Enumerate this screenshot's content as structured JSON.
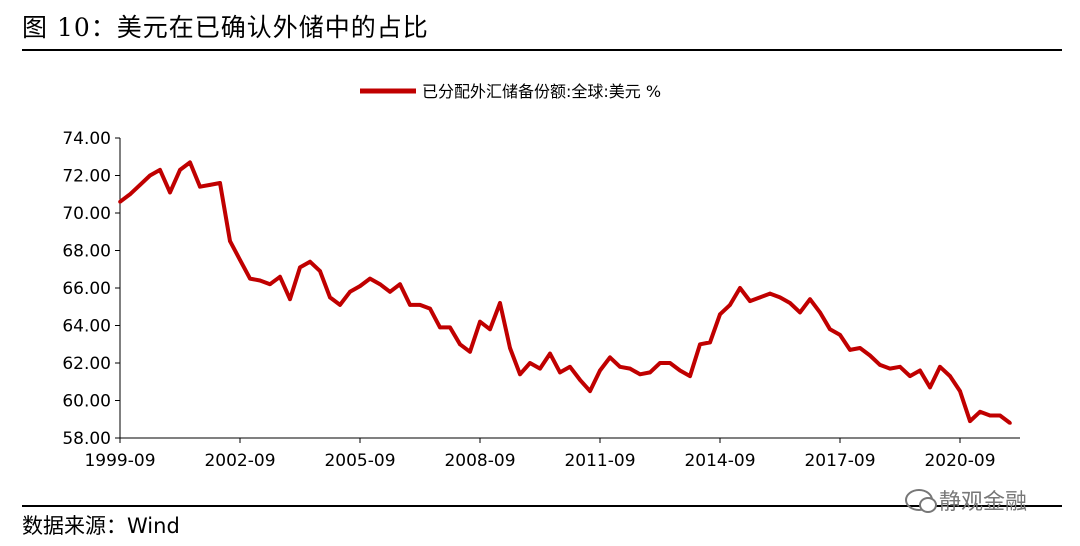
{
  "figure": {
    "title": "图 10：美元在已确认外储中的占比",
    "source": "数据来源：Wind",
    "watermark": "静观金融"
  },
  "colors": {
    "series": "#c00000",
    "axis": "#000000"
  },
  "chart_data": {
    "type": "line",
    "title": "",
    "xlabel": "",
    "ylabel": "",
    "legend_position": "top-center",
    "grid": false,
    "series": [
      {
        "name": "已分配外汇储备份额:全球:美元 %",
        "x": [
          "1999-09",
          "1999-12",
          "2000-03",
          "2000-06",
          "2000-09",
          "2000-12",
          "2001-03",
          "2001-06",
          "2001-09",
          "2001-12",
          "2002-03",
          "2002-06",
          "2002-09",
          "2002-12",
          "2003-03",
          "2003-06",
          "2003-09",
          "2003-12",
          "2004-03",
          "2004-06",
          "2004-09",
          "2004-12",
          "2005-03",
          "2005-06",
          "2005-09",
          "2005-12",
          "2006-03",
          "2006-06",
          "2006-09",
          "2006-12",
          "2007-03",
          "2007-06",
          "2007-09",
          "2007-12",
          "2008-03",
          "2008-06",
          "2008-09",
          "2008-12",
          "2009-03",
          "2009-06",
          "2009-09",
          "2009-12",
          "2010-03",
          "2010-06",
          "2010-09",
          "2010-12",
          "2011-03",
          "2011-06",
          "2011-09",
          "2011-12",
          "2012-03",
          "2012-06",
          "2012-09",
          "2012-12",
          "2013-03",
          "2013-06",
          "2013-09",
          "2013-12",
          "2014-03",
          "2014-06",
          "2014-09",
          "2014-12",
          "2015-03",
          "2015-06",
          "2015-09",
          "2015-12",
          "2016-03",
          "2016-06",
          "2016-09",
          "2016-12",
          "2017-03",
          "2017-06",
          "2017-09",
          "2017-12",
          "2018-03",
          "2018-06",
          "2018-09",
          "2018-12",
          "2019-03",
          "2019-06",
          "2019-09",
          "2019-12",
          "2020-03",
          "2020-06",
          "2020-09",
          "2020-12",
          "2021-03",
          "2021-06",
          "2021-09",
          "2021-12"
        ],
        "values": [
          70.6,
          71.0,
          71.5,
          72.0,
          72.3,
          71.1,
          72.3,
          72.7,
          71.4,
          71.5,
          71.6,
          68.5,
          67.5,
          66.5,
          66.4,
          66.2,
          66.6,
          65.4,
          67.1,
          67.4,
          66.9,
          65.5,
          65.1,
          65.8,
          66.1,
          66.5,
          66.2,
          65.8,
          66.2,
          65.1,
          65.1,
          64.9,
          63.9,
          63.9,
          63.0,
          62.6,
          64.2,
          63.8,
          65.2,
          62.8,
          61.4,
          62.0,
          61.7,
          62.5,
          61.5,
          61.8,
          61.1,
          60.5,
          61.6,
          62.3,
          61.8,
          61.7,
          61.4,
          61.5,
          62.0,
          62.0,
          61.6,
          61.3,
          63.0,
          63.1,
          64.6,
          65.1,
          66.0,
          65.3,
          65.5,
          65.7,
          65.5,
          65.2,
          64.7,
          65.4,
          64.7,
          63.8,
          63.5,
          62.7,
          62.8,
          62.4,
          61.9,
          61.7,
          61.8,
          61.3,
          61.6,
          60.7,
          61.8,
          61.3,
          60.5,
          58.9,
          59.4,
          59.2,
          59.2,
          58.8
        ]
      }
    ],
    "ylim": [
      58,
      74
    ],
    "yticks": [
      58,
      60,
      62,
      64,
      66,
      68,
      70,
      72,
      74
    ],
    "ytick_labels": [
      "58.00",
      "60.00",
      "62.00",
      "64.00",
      "66.00",
      "68.00",
      "70.00",
      "72.00",
      "74.00"
    ],
    "xticks": [
      "1999-09",
      "2002-09",
      "2005-09",
      "2008-09",
      "2011-09",
      "2014-09",
      "2017-09",
      "2020-09"
    ]
  }
}
